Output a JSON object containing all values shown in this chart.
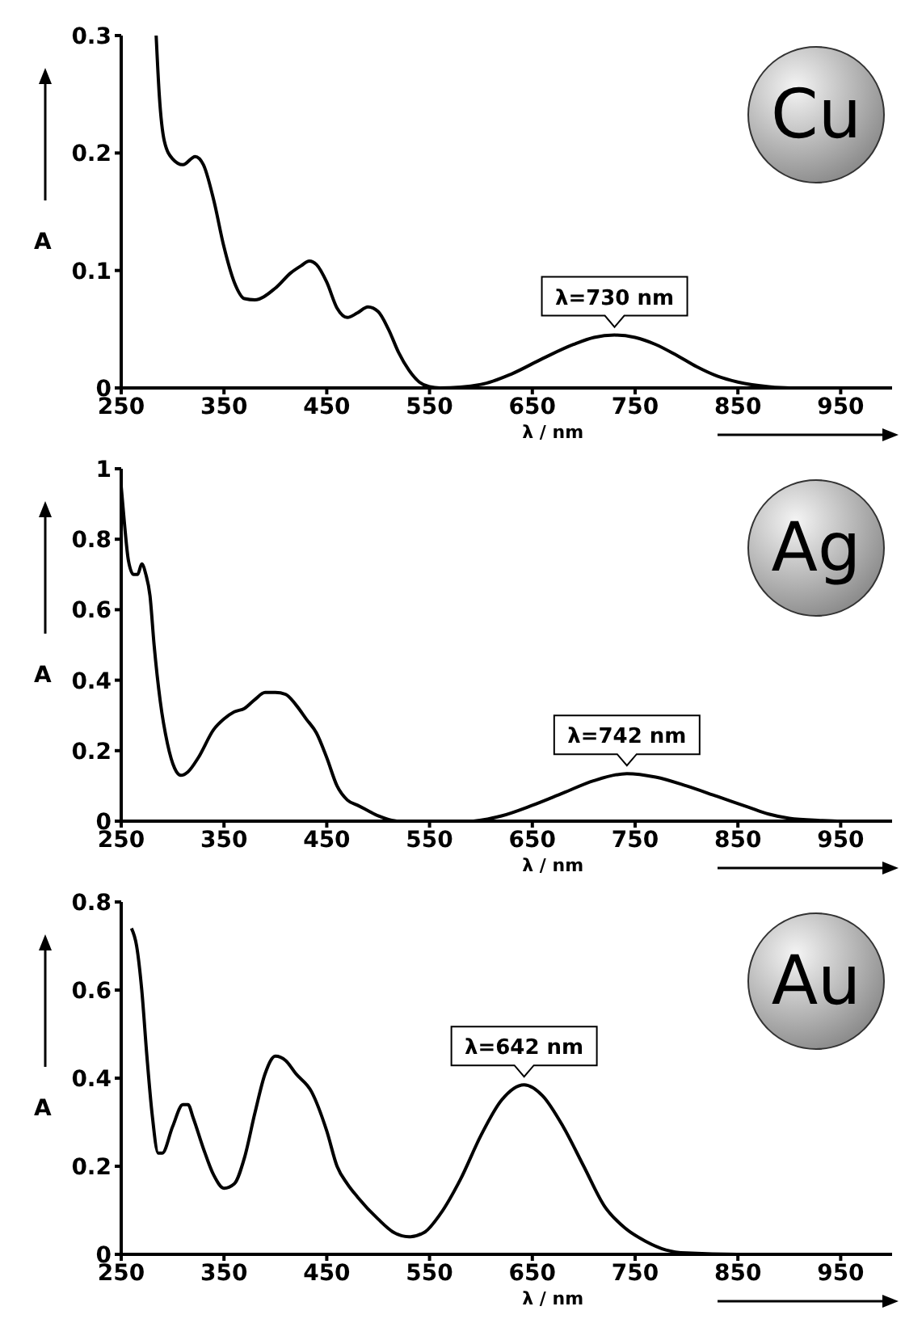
{
  "chart_data": [
    {
      "type": "line",
      "xlabel": "λ / nm",
      "ylabel": "A",
      "annotations": [
        "Cu",
        {
          "text": "λ=730 nm",
          "x": 730,
          "y": 0.045
        }
      ],
      "xlim": [
        250,
        1000
      ],
      "xticks": [
        250,
        350,
        450,
        550,
        650,
        750,
        850,
        950
      ],
      "ylim": [
        0,
        0.3
      ],
      "yticks": [
        0,
        0.1,
        0.2,
        0.3
      ],
      "marker": "none",
      "grid": false,
      "legend": false,
      "series": [
        {
          "color": "#000000",
          "x": [
            284,
            287,
            292,
            300,
            310,
            322,
            330,
            340,
            350,
            360,
            370,
            380,
            400,
            415,
            425,
            433,
            440,
            450,
            460,
            470,
            480,
            490,
            500,
            510,
            520,
            530,
            540,
            550,
            560,
            600,
            630,
            660,
            690,
            710,
            730,
            750,
            770,
            790,
            810,
            830,
            850,
            880,
            900,
            1000
          ],
          "values": [
            0.3,
            0.25,
            0.21,
            0.195,
            0.19,
            0.197,
            0.19,
            0.16,
            0.12,
            0.09,
            0.076,
            0.075,
            0.085,
            0.098,
            0.104,
            0.108,
            0.105,
            0.09,
            0.068,
            0.06,
            0.064,
            0.069,
            0.065,
            0.05,
            0.03,
            0.015,
            0.005,
            0.001,
            0,
            0.003,
            0.012,
            0.025,
            0.037,
            0.043,
            0.045,
            0.043,
            0.037,
            0.028,
            0.018,
            0.01,
            0.005,
            0.001,
            0,
            0
          ]
        }
      ]
    },
    {
      "type": "line",
      "xlabel": "λ / nm",
      "ylabel": "A",
      "annotations": [
        "Ag",
        {
          "text": "λ=742 nm",
          "x": 742,
          "y": 0.135
        }
      ],
      "xlim": [
        250,
        1000
      ],
      "xticks": [
        250,
        350,
        450,
        550,
        650,
        750,
        850,
        950
      ],
      "ylim": [
        0,
        1
      ],
      "yticks": [
        0,
        0.2,
        0.4,
        0.6,
        0.8,
        1
      ],
      "marker": "none",
      "grid": false,
      "legend": false,
      "series": [
        {
          "color": "#000000",
          "x": [
            250,
            253,
            257,
            262,
            266,
            270,
            274,
            278,
            282,
            288,
            295,
            302,
            308,
            315,
            325,
            340,
            350,
            360,
            370,
            380,
            390,
            400,
            410,
            420,
            430,
            440,
            450,
            460,
            470,
            480,
            490,
            500,
            510,
            520,
            590,
            620,
            650,
            680,
            710,
            742,
            770,
            800,
            830,
            860,
            880,
            900,
            930,
            950,
            1000
          ],
          "values": [
            0.95,
            0.85,
            0.74,
            0.7,
            0.7,
            0.73,
            0.7,
            0.64,
            0.5,
            0.34,
            0.22,
            0.15,
            0.13,
            0.14,
            0.18,
            0.26,
            0.29,
            0.31,
            0.32,
            0.345,
            0.365,
            0.365,
            0.36,
            0.33,
            0.29,
            0.25,
            0.18,
            0.1,
            0.06,
            0.045,
            0.03,
            0.015,
            0.005,
            0,
            0,
            0.015,
            0.045,
            0.08,
            0.115,
            0.135,
            0.125,
            0.1,
            0.07,
            0.04,
            0.02,
            0.008,
            0.002,
            0,
            0
          ]
        }
      ]
    },
    {
      "type": "line",
      "xlabel": "λ / nm",
      "ylabel": "A",
      "annotations": [
        "Au",
        {
          "text": "λ=642 nm",
          "x": 642,
          "y": 0.385
        }
      ],
      "xlim": [
        250,
        1000
      ],
      "xticks": [
        250,
        350,
        450,
        550,
        650,
        750,
        850,
        950
      ],
      "ylim": [
        0,
        0.8
      ],
      "yticks": [
        0,
        0.2,
        0.4,
        0.6,
        0.8
      ],
      "marker": "none",
      "grid": false,
      "legend": false,
      "series": [
        {
          "color": "#000000",
          "x": [
            260,
            265,
            270,
            275,
            280,
            286,
            290,
            300,
            310,
            315,
            320,
            330,
            340,
            350,
            360,
            370,
            380,
            390,
            400,
            410,
            420,
            435,
            450,
            460,
            470,
            480,
            500,
            515,
            530,
            545,
            560,
            580,
            600,
            620,
            642,
            660,
            680,
            700,
            720,
            740,
            760,
            780,
            800,
            850,
            1000
          ],
          "values": [
            0.74,
            0.7,
            0.6,
            0.45,
            0.32,
            0.23,
            0.23,
            0.29,
            0.34,
            0.34,
            0.31,
            0.24,
            0.18,
            0.15,
            0.16,
            0.22,
            0.32,
            0.41,
            0.45,
            0.44,
            0.41,
            0.37,
            0.28,
            0.2,
            0.16,
            0.13,
            0.08,
            0.05,
            0.04,
            0.05,
            0.09,
            0.17,
            0.27,
            0.35,
            0.385,
            0.36,
            0.29,
            0.2,
            0.11,
            0.06,
            0.03,
            0.01,
            0.003,
            0,
            0
          ]
        }
      ]
    }
  ]
}
